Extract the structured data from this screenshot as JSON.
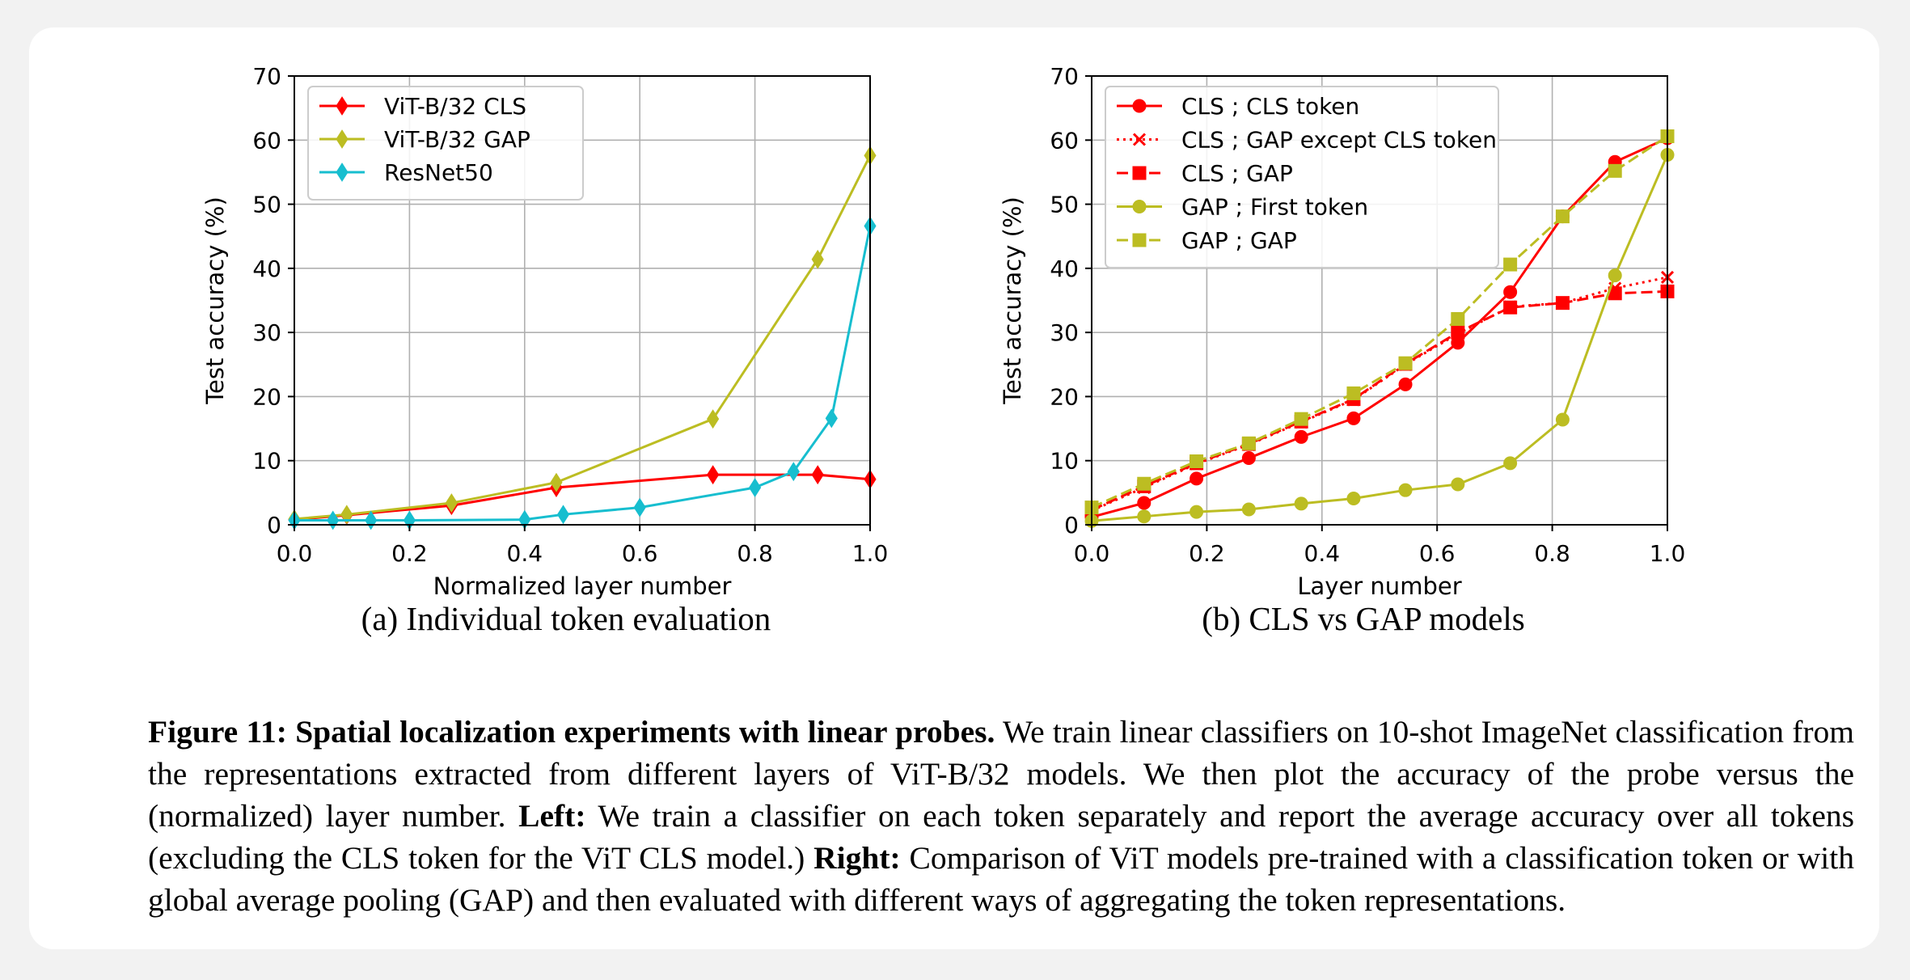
{
  "figure": {
    "caption": {
      "label": "Figure 11:",
      "title": "Spatial localization experiments with linear probes.",
      "text1": "We train linear classifiers on 10-shot ImageNet classification from the representations extracted from different layers of ViT-B/32 models. We then plot the accuracy of the probe versus the (normalized) layer number.",
      "left_label": "Left:",
      "text2": "We train a classifier on each token separately and report the average accuracy over all tokens (excluding the CLS token for the ViT CLS model.)",
      "right_label": "Right:",
      "text3": "Comparison of ViT models pre-trained with a classification token or with global average pooling (GAP) and then evaluated with different ways of aggregating the token representations."
    }
  },
  "chart_data": [
    {
      "type": "line",
      "subcaption": "(a) Individual token evaluation",
      "xlabel": "Normalized layer number",
      "ylabel": "Test accuracy (%)",
      "xlim": [
        0.0,
        1.0
      ],
      "ylim": [
        0,
        70
      ],
      "xticks": [
        "0.0",
        "0.2",
        "0.4",
        "0.6",
        "0.8",
        "1.0"
      ],
      "yticks": [
        "0",
        "10",
        "20",
        "30",
        "40",
        "50",
        "60",
        "70"
      ],
      "grid": true,
      "legend_position": "top-left",
      "series": [
        {
          "name": "ViT-B/32 CLS",
          "color": "#ff0000",
          "marker": "diamond",
          "dash": "solid",
          "x": [
            0.0,
            0.091,
            0.273,
            0.455,
            0.727,
            0.909,
            1.0
          ],
          "y": [
            0.8,
            1.5,
            3.0,
            5.8,
            7.8,
            7.8,
            7.1
          ]
        },
        {
          "name": "ViT-B/32 GAP",
          "color": "#bcbd22",
          "marker": "diamond",
          "dash": "solid",
          "x": [
            0.0,
            0.091,
            0.273,
            0.455,
            0.727,
            0.909,
            1.0
          ],
          "y": [
            0.9,
            1.6,
            3.4,
            6.6,
            16.5,
            41.4,
            57.6
          ]
        },
        {
          "name": "ResNet50",
          "color": "#17becf",
          "marker": "diamond",
          "dash": "solid",
          "x": [
            0.0,
            0.067,
            0.133,
            0.2,
            0.4,
            0.467,
            0.6,
            0.8,
            0.867,
            0.933,
            1.0
          ],
          "y": [
            0.7,
            0.7,
            0.7,
            0.7,
            0.8,
            1.6,
            2.7,
            5.8,
            8.3,
            16.6,
            46.6
          ]
        }
      ]
    },
    {
      "type": "line",
      "subcaption": "(b) CLS vs GAP models",
      "xlabel": "Layer number",
      "ylabel": "Test accuracy (%)",
      "xlim": [
        0.0,
        1.0
      ],
      "ylim": [
        0,
        70
      ],
      "xticks": [
        "0.0",
        "0.2",
        "0.4",
        "0.6",
        "0.8",
        "1.0"
      ],
      "yticks": [
        "0",
        "10",
        "20",
        "30",
        "40",
        "50",
        "60",
        "70"
      ],
      "grid": true,
      "legend_position": "top-left",
      "series": [
        {
          "name": "CLS ; CLS token",
          "color": "#ff0000",
          "marker": "circle",
          "dash": "solid",
          "x": [
            0.0,
            0.091,
            0.182,
            0.273,
            0.364,
            0.455,
            0.545,
            0.636,
            0.727,
            0.818,
            0.909,
            1.0
          ],
          "y": [
            1.2,
            3.4,
            7.2,
            10.4,
            13.7,
            16.6,
            21.9,
            28.4,
            36.3,
            48.1,
            56.6,
            60.3
          ]
        },
        {
          "name": "CLS ; GAP except CLS token",
          "color": "#ff0000",
          "marker": "x",
          "dash": "dotted",
          "x": [
            0.0,
            0.091,
            0.182,
            0.273,
            0.364,
            0.455,
            0.545,
            0.636,
            0.727,
            0.818,
            0.909,
            1.0
          ],
          "y": [
            2.2,
            5.8,
            9.5,
            12.5,
            16.0,
            19.5,
            25.0,
            29.8,
            34.0,
            34.6,
            36.9,
            38.6
          ]
        },
        {
          "name": "CLS ; GAP",
          "color": "#ff0000",
          "marker": "square",
          "dash": "dashed",
          "x": [
            0.0,
            0.091,
            0.182,
            0.273,
            0.364,
            0.455,
            0.545,
            0.636,
            0.727,
            0.818,
            0.909,
            1.0
          ],
          "y": [
            2.3,
            6.0,
            9.6,
            12.6,
            16.1,
            19.6,
            25.1,
            30.0,
            33.9,
            34.6,
            36.1,
            36.4
          ]
        },
        {
          "name": "GAP ; First token",
          "color": "#bcbd22",
          "marker": "circle",
          "dash": "solid",
          "x": [
            0.0,
            0.091,
            0.182,
            0.273,
            0.364,
            0.455,
            0.545,
            0.636,
            0.727,
            0.818,
            0.909,
            1.0
          ],
          "y": [
            0.6,
            1.3,
            2.0,
            2.4,
            3.3,
            4.1,
            5.4,
            6.3,
            9.6,
            16.4,
            38.9,
            57.7
          ]
        },
        {
          "name": "GAP ; GAP",
          "color": "#bcbd22",
          "marker": "square",
          "dash": "dashed",
          "x": [
            0.0,
            0.091,
            0.182,
            0.273,
            0.364,
            0.455,
            0.545,
            0.636,
            0.727,
            0.818,
            0.909,
            1.0
          ],
          "y": [
            2.7,
            6.4,
            9.9,
            12.7,
            16.5,
            20.5,
            25.2,
            32.1,
            40.6,
            48.1,
            55.2,
            60.6
          ]
        }
      ]
    }
  ]
}
